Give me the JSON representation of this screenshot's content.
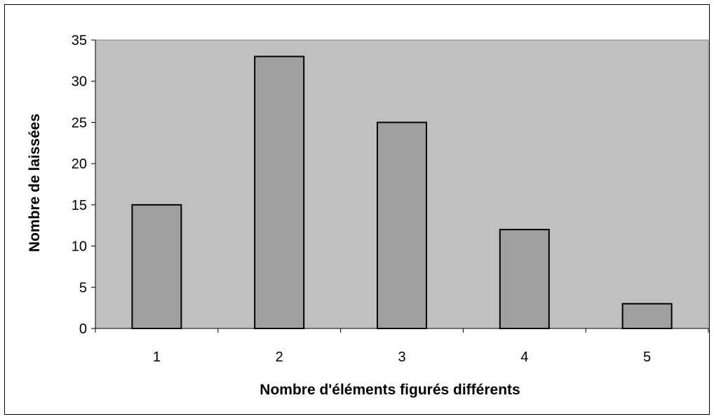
{
  "chart_data": {
    "type": "bar",
    "categories": [
      "1",
      "2",
      "3",
      "4",
      "5"
    ],
    "values": [
      15,
      33,
      25,
      12,
      3
    ],
    "title": "",
    "xlabel": "Nombre d'éléments figurés différents",
    "ylabel": "Nombre de laissées",
    "ylim": [
      0,
      35
    ],
    "yticks": [
      "0",
      "5",
      "10",
      "15",
      "20",
      "25",
      "30",
      "35"
    ],
    "grid": false,
    "colors": {
      "plot_background": "#c0c0c0",
      "bar_fill": "#a0a0a0",
      "bar_stroke": "#000000"
    }
  }
}
